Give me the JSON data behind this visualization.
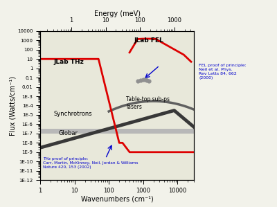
{
  "xlabel_bottom": "Wavenumbers (cm⁻¹)",
  "xlabel_top": "Energy (meV)",
  "ylabel": "Flux (Watts/cm⁻¹)",
  "background_color": "#f2f2ea",
  "plot_bg": "#e8e8da",
  "jlab_thz_color": "#dd0000",
  "jlab_fel_color": "#dd0000",
  "synchrotron_color": "#383838",
  "globar_color": "#b8b8b8",
  "tabletop_color": "#606060",
  "tabletop_dot_color": "#909090",
  "annotation_color": "#0000cc",
  "text_color": "#000000"
}
